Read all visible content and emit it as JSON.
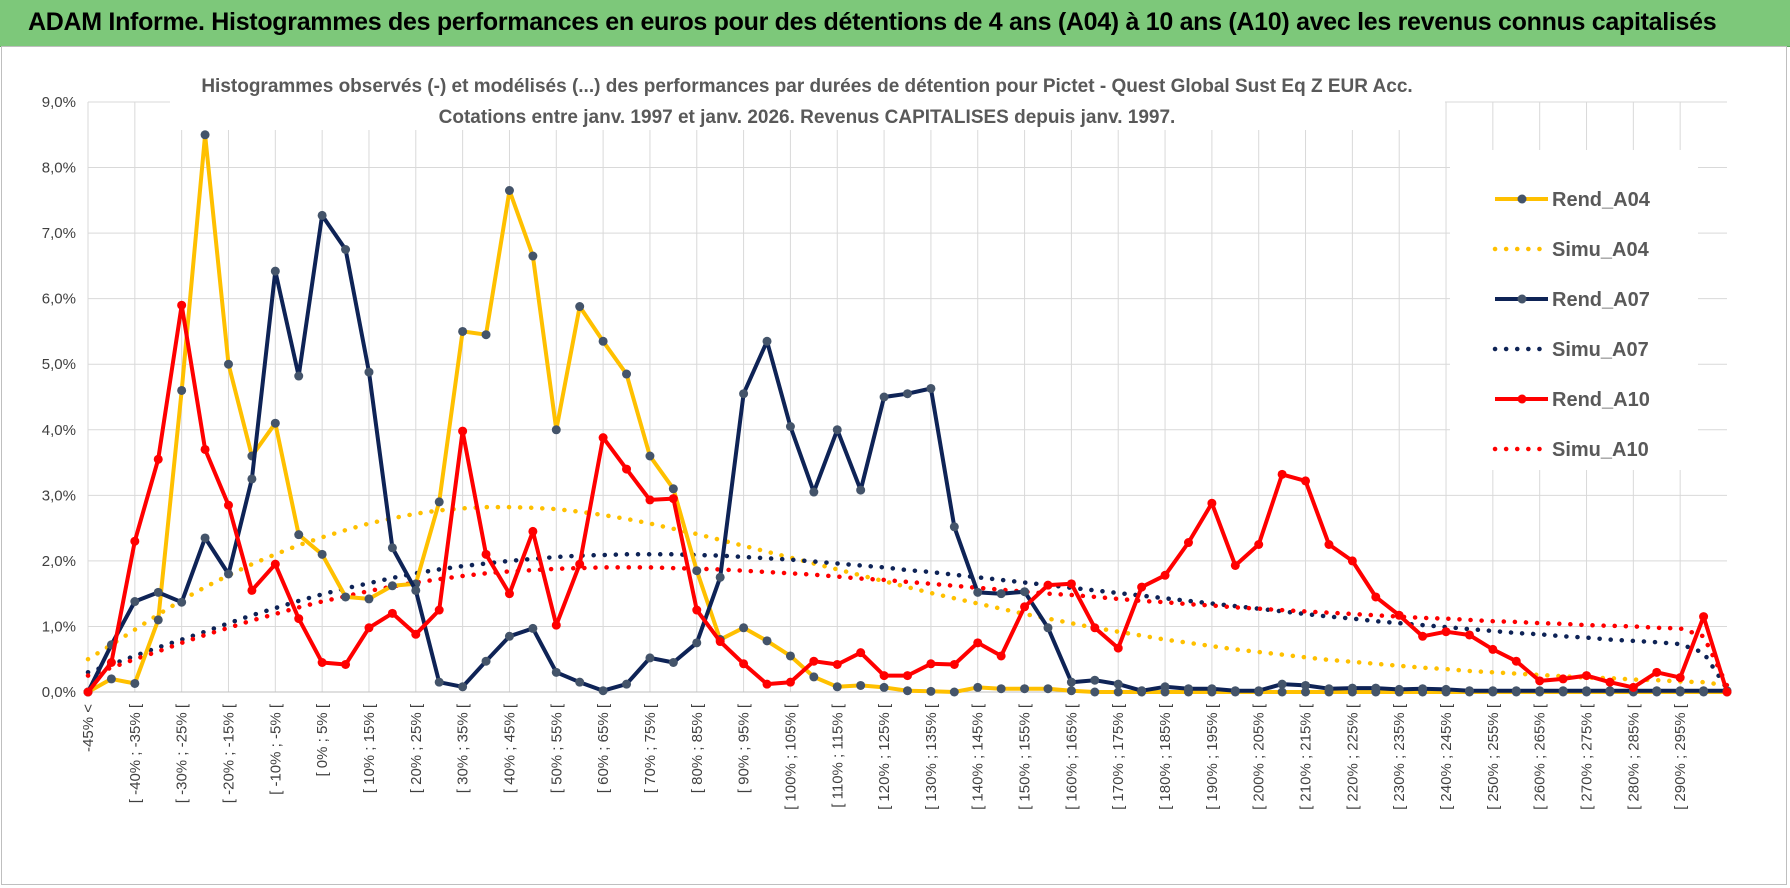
{
  "header": {
    "title": "ADAM Informe. Histogrammes des performances en euros pour des détentions de 4 ans (A04) à 10 ans (A10) avec les revenus connus capitalisés"
  },
  "colors": {
    "banner_bg": "#7dc87a",
    "A04": "#ffc000",
    "A07": "#0e2356",
    "A10": "#ff0000",
    "grid": "#d9d9d9"
  },
  "chart_data": {
    "type": "line",
    "title": "Histogrammes observés (-) et modélisés (...) des performances par durées de détention pour Pictet - Quest Global Sust Eq Z EUR Acc.",
    "subtitle": "Cotations entre janv. 1997 et janv. 2026. Revenus CAPITALISES depuis janv. 1997.",
    "xlabel": "",
    "ylabel": "",
    "ylim": [
      0,
      9
    ],
    "yticks": [
      "0,0%",
      "1,0%",
      "2,0%",
      "3,0%",
      "4,0%",
      "5,0%",
      "6,0%",
      "7,0%",
      "8,0%",
      "9,0%"
    ],
    "grid": true,
    "legend_position": "right",
    "x_labels": [
      "-45% <",
      "[ -40% ; -35% [",
      "[ -30% ; -25% [",
      "[ -20% ; -15% [",
      "[ -10% ; -5% [",
      "[ 0% ; 5% [",
      "[ 10% ; 15% [",
      "[ 20% ; 25% [",
      "[ 30% ; 35% [",
      "[ 40% ; 45% [",
      "[ 50% ; 55% [",
      "[ 60% ; 65% [",
      "[ 70% ; 75% [",
      "[ 80% ; 85% [",
      "[ 90% ; 95% [",
      "[ 100% ; 105% [",
      "[ 110% ; 115% [",
      "[ 120% ; 125% [",
      "[ 130% ; 135% [",
      "[ 140% ; 145% [",
      "[ 150% ; 155% [",
      "[ 160% ; 165% [",
      "[ 170% ; 175% [",
      "[ 180% ; 185% [",
      "[ 190% ; 195% [",
      "[ 200% ; 205% [",
      "[ 210% ; 215% [",
      "[ 220% ; 225% [",
      "[ 230% ; 235% [",
      "[ 240% ; 245% [",
      "[ 250% ; 255% [",
      "[ 260% ; 265% [",
      "[ 270% ; 275% [",
      "[ 280% ; 285% [",
      "[ 290% ; 295% ["
    ],
    "series": [
      {
        "name": "Rend_A04",
        "style": "solid",
        "color": "#ffc000",
        "values": [
          0.0,
          0.2,
          0.13,
          1.1,
          4.6,
          8.5,
          5.0,
          3.6,
          4.1,
          2.4,
          2.1,
          1.45,
          1.42,
          1.62,
          1.65,
          2.9,
          5.5,
          5.45,
          7.65,
          6.65,
          4.0,
          5.88,
          5.35,
          4.85,
          3.6,
          3.1,
          1.85,
          0.8,
          0.98,
          0.78,
          0.55,
          0.23,
          0.08,
          0.1,
          0.07,
          0.02,
          0.01,
          0.0,
          0.07,
          0.05,
          0.05,
          0.05,
          0.02,
          0.0,
          0.0,
          0.0,
          0.0,
          0.0,
          0.0,
          0.0,
          0.0,
          0.0,
          0.0,
          0.0,
          0.0,
          0.0,
          0.0,
          0.0,
          0.0,
          0.0,
          0.0,
          0.0,
          0.0,
          0.0,
          0.0,
          0.0,
          0.0,
          0.0,
          0.0,
          0.0,
          0.0
        ]
      },
      {
        "name": "Simu_A04",
        "style": "dotted",
        "color": "#ffc000",
        "values": [
          0.5,
          0.72,
          0.95,
          1.18,
          1.4,
          1.6,
          1.78,
          1.95,
          2.1,
          2.24,
          2.36,
          2.47,
          2.57,
          2.65,
          2.72,
          2.77,
          2.8,
          2.82,
          2.82,
          2.81,
          2.79,
          2.75,
          2.7,
          2.64,
          2.57,
          2.49,
          2.41,
          2.32,
          2.23,
          2.14,
          2.05,
          1.96,
          1.87,
          1.78,
          1.69,
          1.6,
          1.51,
          1.43,
          1.35,
          1.27,
          1.19,
          1.12,
          1.05,
          0.98,
          0.92,
          0.86,
          0.8,
          0.75,
          0.7,
          0.65,
          0.61,
          0.57,
          0.53,
          0.49,
          0.46,
          0.43,
          0.4,
          0.37,
          0.35,
          0.32,
          0.3,
          0.28,
          0.26,
          0.24,
          0.22,
          0.21,
          0.19,
          0.18,
          0.16,
          0.15,
          0.1
        ]
      },
      {
        "name": "Rend_A07",
        "style": "solid",
        "color": "#0e2356",
        "values": [
          0.0,
          0.72,
          1.38,
          1.52,
          1.37,
          2.35,
          1.8,
          3.25,
          6.42,
          4.82,
          7.27,
          6.75,
          4.88,
          2.2,
          1.55,
          0.15,
          0.08,
          0.47,
          0.85,
          0.97,
          0.3,
          0.15,
          0.02,
          0.12,
          0.52,
          0.45,
          0.75,
          1.75,
          4.55,
          5.35,
          4.05,
          3.05,
          4.0,
          3.08,
          4.5,
          4.55,
          4.63,
          2.52,
          1.52,
          1.5,
          1.53,
          0.98,
          0.15,
          0.18,
          0.12,
          0.02,
          0.08,
          0.05,
          0.05,
          0.02,
          0.02,
          0.12,
          0.1,
          0.05,
          0.06,
          0.06,
          0.04,
          0.05,
          0.04,
          0.02,
          0.02,
          0.02,
          0.02,
          0.02,
          0.02,
          0.02,
          0.02,
          0.02,
          0.02,
          0.02,
          0.02
        ]
      },
      {
        "name": "Simu_A07",
        "style": "dotted",
        "color": "#0e2356",
        "values": [
          0.3,
          0.42,
          0.55,
          0.68,
          0.8,
          0.92,
          1.05,
          1.17,
          1.28,
          1.39,
          1.49,
          1.58,
          1.66,
          1.74,
          1.81,
          1.87,
          1.92,
          1.96,
          2.0,
          2.03,
          2.06,
          2.08,
          2.09,
          2.1,
          2.1,
          2.1,
          2.09,
          2.08,
          2.06,
          2.04,
          2.02,
          1.99,
          1.96,
          1.93,
          1.9,
          1.86,
          1.83,
          1.79,
          1.75,
          1.71,
          1.67,
          1.63,
          1.59,
          1.55,
          1.51,
          1.47,
          1.43,
          1.39,
          1.35,
          1.31,
          1.27,
          1.23,
          1.19,
          1.15,
          1.12,
          1.08,
          1.05,
          1.02,
          0.99,
          0.96,
          0.93,
          0.9,
          0.88,
          0.85,
          0.83,
          0.8,
          0.78,
          0.76,
          0.73,
          0.6,
          0.05
        ]
      },
      {
        "name": "Rend_A10",
        "style": "solid",
        "color": "#ff0000",
        "values": [
          0.0,
          0.45,
          2.3,
          3.55,
          5.9,
          3.7,
          2.85,
          1.55,
          1.95,
          1.12,
          0.45,
          0.42,
          0.98,
          1.2,
          0.88,
          1.25,
          3.98,
          2.1,
          1.5,
          2.45,
          1.02,
          1.95,
          3.88,
          3.4,
          2.93,
          2.95,
          1.25,
          0.77,
          0.43,
          0.12,
          0.15,
          0.47,
          0.42,
          0.6,
          0.25,
          0.25,
          0.43,
          0.42,
          0.75,
          0.55,
          1.3,
          1.63,
          1.65,
          0.98,
          0.67,
          1.6,
          1.78,
          2.28,
          2.88,
          1.93,
          2.25,
          3.32,
          3.22,
          2.25,
          2.0,
          1.45,
          1.17,
          0.85,
          0.92,
          0.87,
          0.65,
          0.47,
          0.17,
          0.2,
          0.25,
          0.15,
          0.07,
          0.3,
          0.22,
          1.15,
          0.0
        ]
      },
      {
        "name": "Simu_A10",
        "style": "dotted",
        "color": "#ff0000",
        "values": [
          0.25,
          0.37,
          0.5,
          0.62,
          0.75,
          0.87,
          0.98,
          1.09,
          1.19,
          1.29,
          1.38,
          1.46,
          1.54,
          1.61,
          1.67,
          1.72,
          1.77,
          1.81,
          1.84,
          1.86,
          1.88,
          1.89,
          1.9,
          1.9,
          1.9,
          1.89,
          1.88,
          1.87,
          1.85,
          1.83,
          1.81,
          1.79,
          1.76,
          1.73,
          1.71,
          1.68,
          1.65,
          1.62,
          1.59,
          1.56,
          1.53,
          1.5,
          1.48,
          1.45,
          1.42,
          1.39,
          1.37,
          1.34,
          1.32,
          1.29,
          1.27,
          1.25,
          1.23,
          1.21,
          1.19,
          1.17,
          1.15,
          1.13,
          1.12,
          1.1,
          1.08,
          1.07,
          1.05,
          1.04,
          1.02,
          1.01,
          1.0,
          0.98,
          0.97,
          0.85,
          0.1
        ]
      }
    ]
  }
}
